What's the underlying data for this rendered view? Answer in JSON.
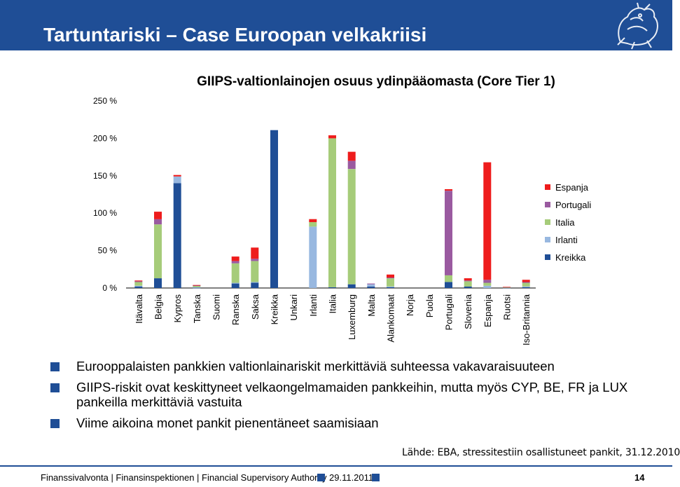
{
  "header": {
    "title": "Tartuntariski – Case Euroopan velkakriisi",
    "logo_icon": "lion-crest-icon"
  },
  "chart_data": {
    "type": "bar",
    "stacked": true,
    "title": "GIIPS-valtionlainojen osuus ydinpääomasta (Core Tier 1)",
    "xlabel": "",
    "ylabel": "",
    "ylim": [
      0,
      250
    ],
    "yticks": [
      0,
      50,
      100,
      150,
      200,
      250
    ],
    "ytick_labels": [
      "0 %",
      "50 %",
      "100 %",
      "150 %",
      "200 %",
      "250 %"
    ],
    "grid": false,
    "legend_position": "right",
    "categories": [
      "Itävalta",
      "Belgia",
      "Kypros",
      "Tanska",
      "Suomi",
      "Ranska",
      "Saksa",
      "Kreikka",
      "Unkari",
      "Irlanti",
      "Italia",
      "Luxemburg",
      "Malta",
      "Alankomaat",
      "Norja",
      "Puola",
      "Portugali",
      "Slovenia",
      "Espanja",
      "Ruotsi",
      "Iso-Britannia"
    ],
    "series": [
      {
        "name": "Kreikka",
        "color": "#1f4e96",
        "values": [
          2,
          13,
          140,
          0.5,
          0,
          6,
          7,
          211,
          0,
          0,
          1,
          5,
          2,
          1,
          0,
          0,
          8,
          2,
          0,
          0.5,
          1
        ]
      },
      {
        "name": "Irlanti",
        "color": "#98b8e0",
        "values": [
          1,
          0,
          9,
          0.5,
          0,
          1,
          1,
          0,
          0,
          82,
          0,
          0,
          3,
          1,
          0,
          0,
          0,
          0,
          3,
          0,
          1
        ]
      },
      {
        "name": "Italia",
        "color": "#a6cc7a",
        "values": [
          5,
          72,
          0,
          2,
          0,
          26,
          28,
          0,
          0,
          6,
          199,
          154,
          0,
          11,
          0,
          0,
          9,
          7,
          4,
          0.5,
          5
        ]
      },
      {
        "name": "Portugali",
        "color": "#9a5aa0",
        "values": [
          1,
          7,
          0,
          0.5,
          0,
          3,
          3,
          0,
          0,
          0,
          0,
          11,
          1,
          1,
          0,
          0,
          113,
          1,
          4,
          0,
          1
        ]
      },
      {
        "name": "Espanja",
        "color": "#ee1c1c",
        "values": [
          1,
          10,
          2,
          0.5,
          0,
          6,
          15,
          0,
          0,
          4,
          4,
          12,
          0,
          4,
          0,
          0,
          2,
          3,
          157,
          0.5,
          3
        ]
      }
    ]
  },
  "bullets": [
    "Eurooppalaisten pankkien valtionlainariskit merkittäviä suhteessa vakavaraisuuteen",
    "GIIPS-riskit ovat keskittyneet velkaongelmamaiden pankkeihin, mutta myös CYP, BE, FR ja LUX pankeilla merkittäviä vastuita",
    "Viime aikoina monet pankit pienentäneet saamisiaan"
  ],
  "source": "Lähde: EBA, stressitestiin osallistuneet pankit, 31.12.2010",
  "footer": {
    "org": "Finanssivalvonta | Finansinspektionen | Financial Supervisory Authority",
    "date": "29.11.2011",
    "page": "14"
  }
}
